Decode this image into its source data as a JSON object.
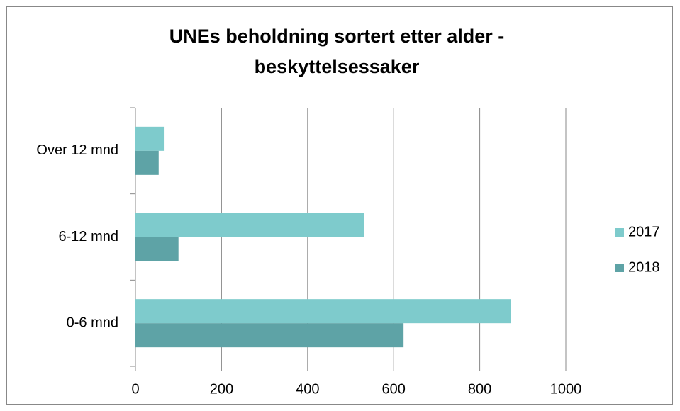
{
  "chart_data": {
    "type": "bar",
    "orientation": "horizontal",
    "title": "UNEs beholdning sortert etter alder - beskyttelsessaker",
    "categories": [
      "0-6 mnd",
      "6-12 mnd",
      "Over 12 mnd"
    ],
    "series": [
      {
        "name": "2017",
        "color": "#7ecbcc",
        "values": [
          873,
          532,
          66
        ]
      },
      {
        "name": "2018",
        "color": "#5ea3a6",
        "values": [
          623,
          100,
          54
        ]
      }
    ],
    "xlim": [
      0,
      1000
    ],
    "xticks": [
      0,
      200,
      400,
      600,
      800,
      1000
    ],
    "grid": true,
    "legend": "right"
  }
}
